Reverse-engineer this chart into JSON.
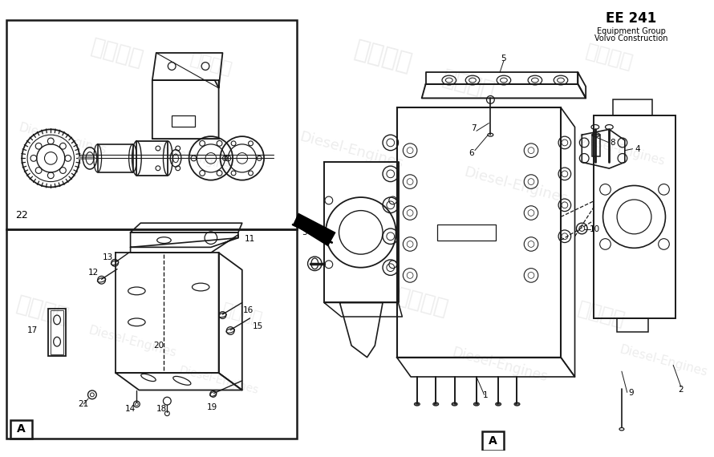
{
  "bg_color": "#ffffff",
  "line_color": "#1a1a1a",
  "footer_text1": "Volvo Construction",
  "footer_text2": "Equipment Group",
  "footer_code": "EE 241",
  "wm_color": "#cccccc",
  "wm_alpha": 0.35
}
